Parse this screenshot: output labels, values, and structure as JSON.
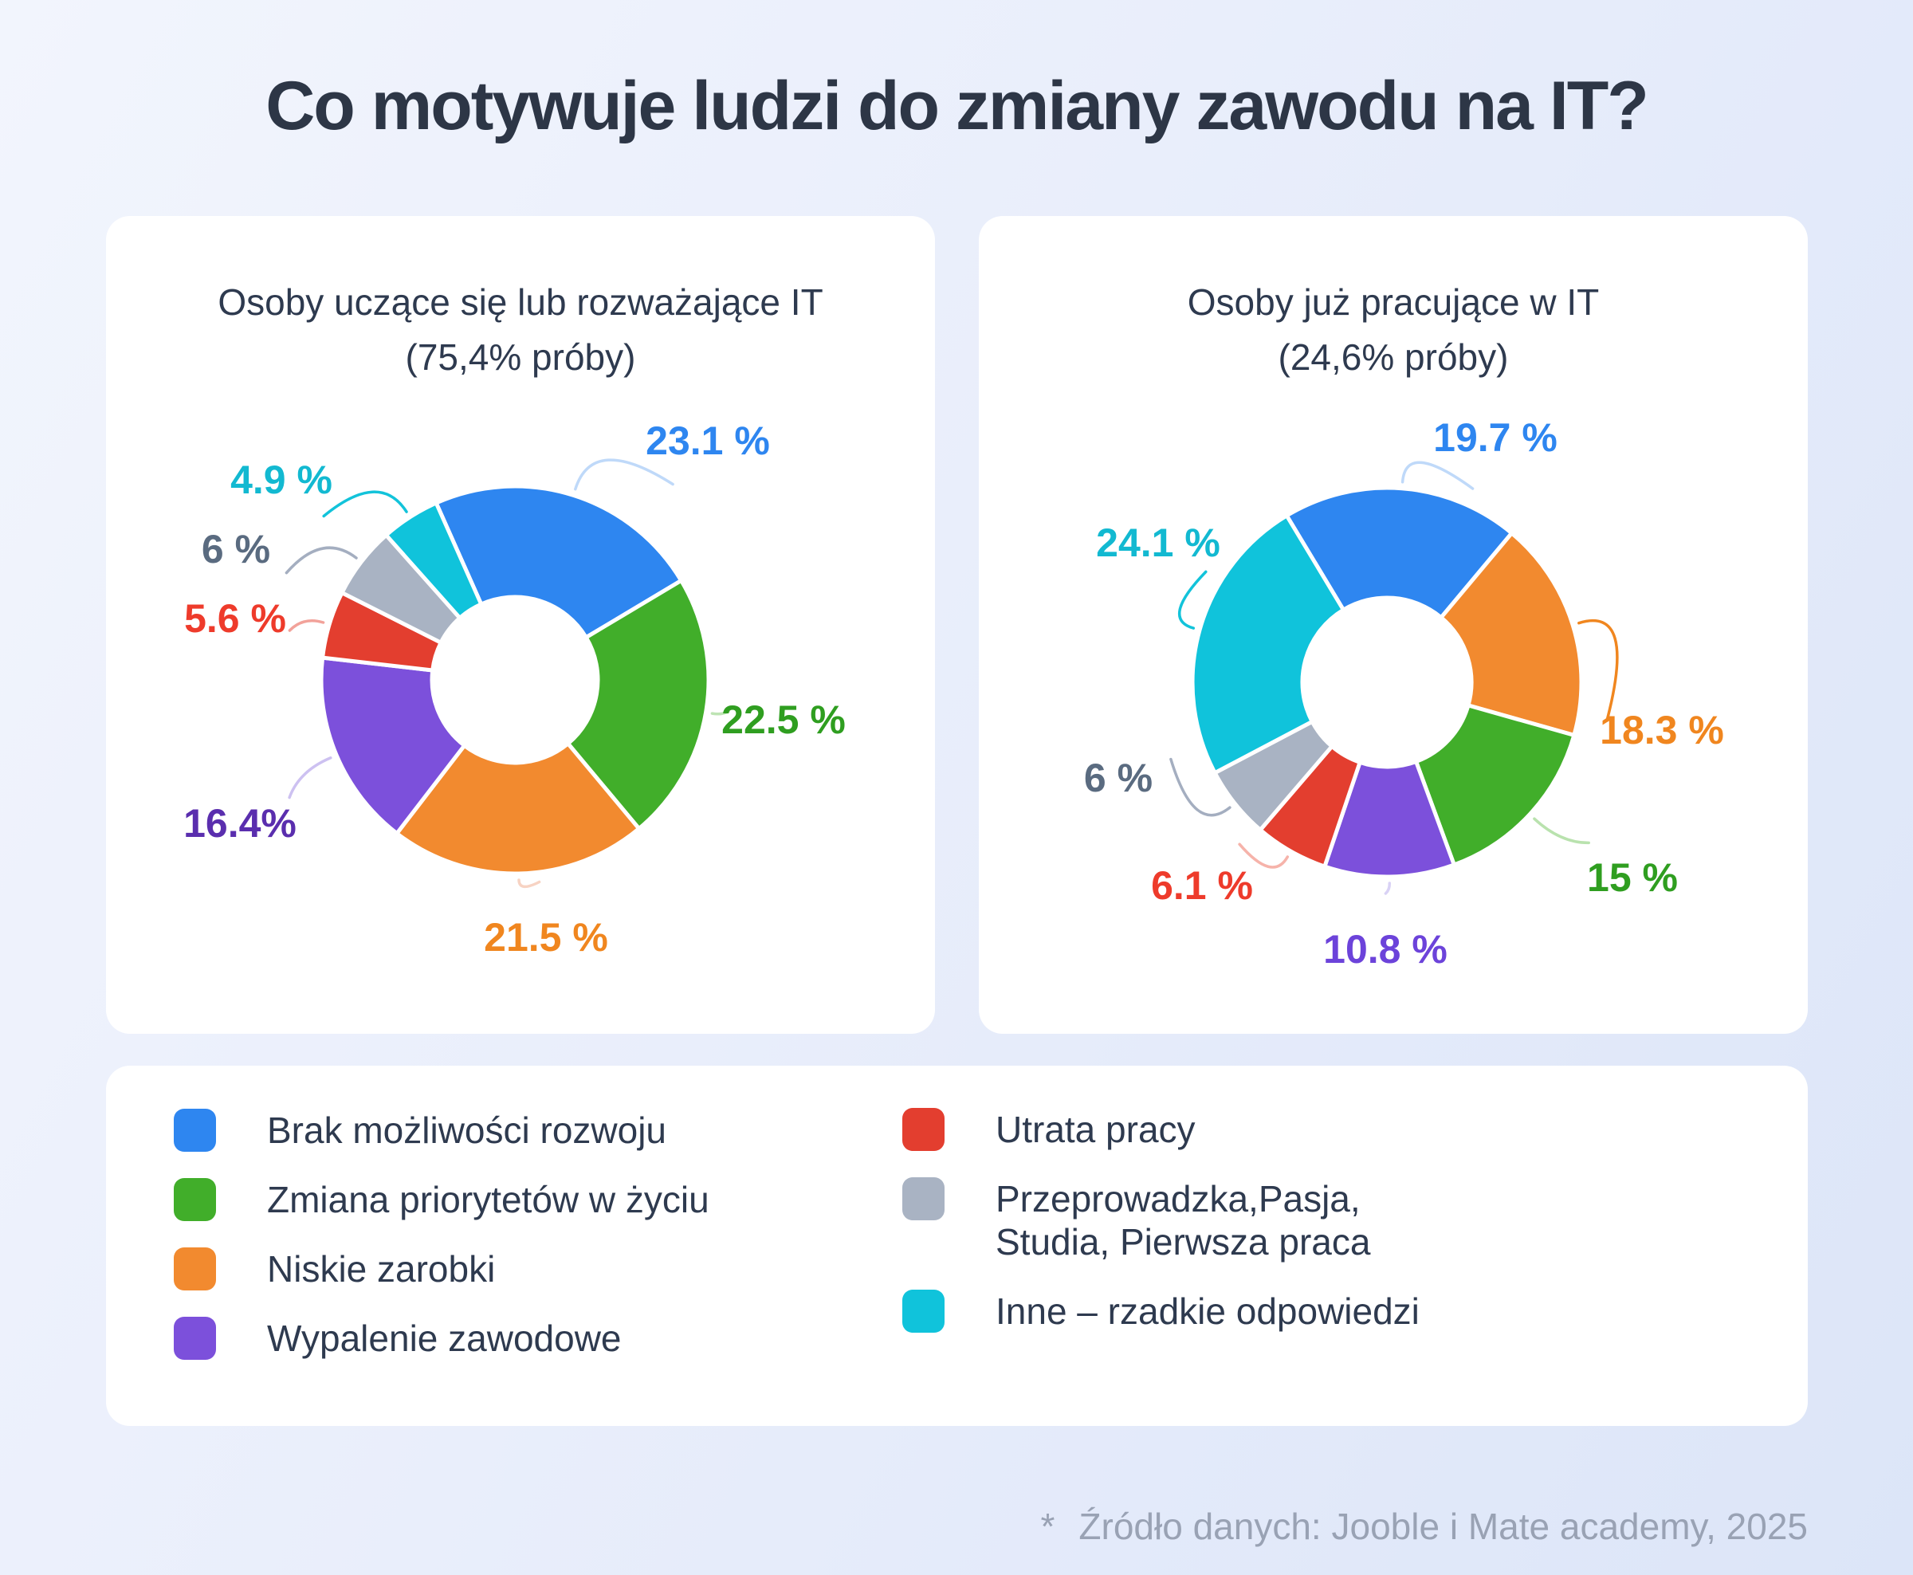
{
  "title": "Co motywuje ludzi do zmiany zawodu na IT?",
  "theme": {
    "page_bg_from": "#F2F5FD",
    "page_bg_mid": "#E9EEFB",
    "page_bg_to": "#DCE5F8",
    "card_bg": "#FFFFFF",
    "title_color": "#2D3646",
    "chart_title_color": "#2E3A4F",
    "legend_text_color": "#2E3A4F",
    "footnote_color": "#99A2B4",
    "slice_gap_color": "#FFFFFF"
  },
  "chart_data": [
    {
      "type": "pie",
      "variant": "donut",
      "title": "Osoby uczące się lub rozważające IT (75,4% próby)",
      "title_lines": [
        "Osoby uczące się lub rozważające IT",
        "(75,4% próby)"
      ],
      "legend_position": "shared-bottom",
      "categories": [
        "Brak możliwości rozwoju",
        "Zmiana priorytetów w życiu",
        "Niskie zarobki",
        "Wypalenie zawodowe",
        "Utrata pracy",
        "Przeprowadzka, Pasja, Studia, Pierwsza praca",
        "Inne – rzadkie odpowiedzi"
      ],
      "values": [
        23.1,
        22.5,
        21.5,
        16.4,
        5.6,
        6,
        4.9
      ],
      "layout": {
        "center": [
          513,
          582
        ],
        "outer_radius": 243,
        "inner_radius": 104,
        "start_angle_deg": -24
      },
      "slices": [
        {
          "key": "brak-mozliwosci-rozwoju",
          "category": "Brak możliwości rozwoju",
          "value": 23.1,
          "label": "23.1 %",
          "color": "#2E86F0",
          "label_color": "#2E86F0",
          "leader_color": "#BFD9F9",
          "label_pos": [
            755,
            282
          ]
        },
        {
          "key": "zmiana-priorytetow",
          "category": "Zmiana priorytetów w życiu",
          "value": 22.5,
          "label": "22.5 %",
          "color": "#41AE2A",
          "label_color": "#2F9E20",
          "leader_color": "#BEE4B4",
          "label_pos": [
            850,
            632
          ]
        },
        {
          "key": "niskie-zarobki",
          "category": "Niskie zarobki",
          "value": 21.5,
          "label": "21.5 %",
          "color": "#F28A2F",
          "label_color": "#F0861F",
          "leader_color": "#F7D3C3",
          "label_pos": [
            552,
            905
          ]
        },
        {
          "key": "wypalenie-zawodowe",
          "category": "Wypalenie zawodowe",
          "value": 16.4,
          "label": "16.4%",
          "color": "#7C50DB",
          "label_color": "#5A2EAE",
          "leader_color": "#CDC1F1",
          "label_pos": [
            168,
            762
          ]
        },
        {
          "key": "utrata-pracy",
          "category": "Utrata pracy",
          "value": 5.6,
          "label": "5.6 %",
          "color": "#E33E2F",
          "label_color": "#EE3B2B",
          "leader_color": "#F2A29A",
          "label_pos": [
            162,
            505
          ]
        },
        {
          "key": "przeprowadzka-pasja-studia",
          "category": "Przeprowadzka, Pasja, Studia, Pierwsza praca",
          "value": 6,
          "label": "6 %",
          "color": "#A9B3C3",
          "label_color": "#5A6B80",
          "leader_color": "#A4AEC0",
          "label_pos": [
            163,
            418
          ]
        },
        {
          "key": "inne-rzadkie",
          "category": "Inne – rzadkie odpowiedzi",
          "value": 4.9,
          "label": "4.9 %",
          "color": "#10C3DB",
          "label_color": "#12B9D1",
          "leader_color": "#12C3DA",
          "label_pos": [
            220,
            331
          ]
        }
      ]
    },
    {
      "type": "pie",
      "variant": "donut",
      "title": "Osoby już pracujące w IT (24,6% próby)",
      "title_lines": [
        "Osoby już pracujące w IT",
        "(24,6% próby)"
      ],
      "legend_position": "shared-bottom",
      "categories": [
        "Brak możliwości rozwoju",
        "Niskie zarobki",
        "Zmiana priorytetów w życiu",
        "Wypalenie zawodowe",
        "Utrata pracy",
        "Przeprowadzka, Pasja, Studia, Pierwsza praca",
        "Inne – rzadkie odpowiedzi"
      ],
      "values": [
        19.7,
        18.3,
        15,
        10.8,
        6.1,
        6,
        24.1
      ],
      "layout": {
        "center": [
          512,
          585
        ],
        "outer_radius": 244,
        "inner_radius": 106,
        "start_angle_deg": -31
      },
      "slices": [
        {
          "key": "brak-mozliwosci-rozwoju",
          "category": "Brak możliwości rozwoju",
          "value": 19.7,
          "label": "19.7 %",
          "color": "#2E86F0",
          "label_color": "#2E86F0",
          "leader_color": "#BFD9F9",
          "label_pos": [
            648,
            278
          ]
        },
        {
          "key": "niskie-zarobki",
          "category": "Niskie zarobki",
          "value": 18.3,
          "label": "18.3 %",
          "color": "#F28A2F",
          "label_color": "#F0861F",
          "leader_color": "#F0861F",
          "label_pos": [
            857,
            645
          ]
        },
        {
          "key": "zmiana-priorytetow",
          "category": "Zmiana priorytetów w życiu",
          "value": 15,
          "label": "15 %",
          "color": "#41AE2A",
          "label_color": "#2F9E20",
          "leader_color": "#B9E2AE",
          "label_pos": [
            820,
            830
          ]
        },
        {
          "key": "wypalenie-zawodowe",
          "category": "Wypalenie zawodowe",
          "value": 10.8,
          "label": "10.8 %",
          "color": "#7C50DB",
          "label_color": "#6C43DA",
          "leader_color": "#D9D2F5",
          "label_pos": [
            510,
            920
          ]
        },
        {
          "key": "utrata-pracy",
          "category": "Utrata pracy",
          "value": 6.1,
          "label": "6.1 %",
          "color": "#E33E2F",
          "label_color": "#EE3B2B",
          "leader_color": "#F6B3AA",
          "label_pos": [
            280,
            840
          ]
        },
        {
          "key": "przeprowadzka-pasja-studia",
          "category": "Przeprowadzka, Pasja, Studia, Pierwsza praca",
          "value": 6,
          "label": "6 %",
          "color": "#A9B3C3",
          "label_color": "#5A6B80",
          "leader_color": "#A4AEC0",
          "label_pos": [
            175,
            705
          ]
        },
        {
          "key": "inne-rzadkie",
          "category": "Inne – rzadkie odpowiedzi",
          "value": 24.1,
          "label": "24.1 %",
          "color": "#10C3DB",
          "label_color": "#12B9D1",
          "leader_color": "#12C3DA",
          "label_pos": [
            225,
            410
          ]
        }
      ]
    }
  ],
  "legend": {
    "columns": [
      {
        "items": [
          {
            "key": "brak-mozliwosci-rozwoju",
            "color": "#2E86F0",
            "lines": [
              "Brak możliwości rozwoju"
            ]
          },
          {
            "key": "zmiana-priorytetow",
            "color": "#41AE2A",
            "lines": [
              "Zmiana priorytetów w życiu"
            ]
          },
          {
            "key": "niskie-zarobki",
            "color": "#F28A2F",
            "lines": [
              "Niskie zarobki"
            ]
          },
          {
            "key": "wypalenie-zawodowe",
            "color": "#7C50DB",
            "lines": [
              "Wypalenie zawodowe"
            ]
          }
        ]
      },
      {
        "items": [
          {
            "key": "utrata-pracy",
            "color": "#E33E2F",
            "lines": [
              "Utrata pracy"
            ]
          },
          {
            "key": "przeprowadzka-pasja-studia",
            "color": "#A9B3C3",
            "lines": [
              "Przeprowadzka,Pasja,",
              "Studia, Pierwsza praca"
            ]
          },
          {
            "key": "inne-rzadkie",
            "color": "#10C3DB",
            "lines": [
              "Inne – rzadkie odpowiedzi"
            ]
          }
        ]
      }
    ]
  },
  "footnote": {
    "asterisk": "*",
    "text": "Źródło danych: Jooble i Mate academy, 2025"
  }
}
